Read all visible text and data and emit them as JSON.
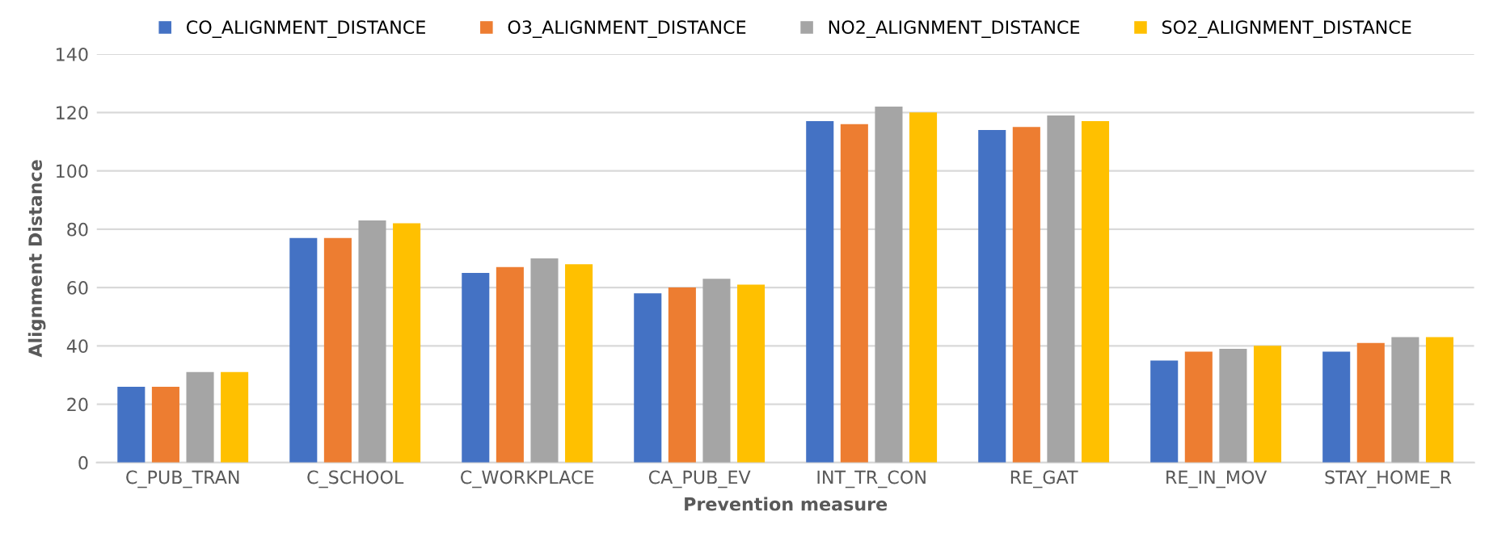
{
  "chart_data": {
    "type": "bar",
    "xlabel": "Prevention measure",
    "ylabel": "Alignment Distance",
    "categories": [
      "C_PUB_TRAN",
      "C_SCHOOL",
      "C_WORKPLACE",
      "CA_PUB_EV",
      "INT_TR_CON",
      "RE_GAT",
      "RE_IN_MOV",
      "STAY_HOME_R"
    ],
    "series": [
      {
        "name": "CO_ALIGNMENT_DISTANCE",
        "color": "#4472c4",
        "values": [
          26,
          77,
          65,
          58,
          117,
          114,
          35,
          38
        ]
      },
      {
        "name": "O3_ALIGNMENT_DISTANCE",
        "color": "#ed7d31",
        "values": [
          26,
          77,
          67,
          60,
          116,
          115,
          38,
          41
        ]
      },
      {
        "name": "NO2_ALIGNMENT_DISTANCE",
        "color": "#a5a5a5",
        "values": [
          31,
          83,
          70,
          63,
          122,
          119,
          39,
          43
        ]
      },
      {
        "name": "SO2_ALIGNMENT_DISTANCE",
        "color": "#ffc000",
        "values": [
          31,
          82,
          68,
          61,
          120,
          117,
          40,
          43
        ]
      }
    ],
    "ylim": [
      0,
      140
    ],
    "yticks": [
      0,
      20,
      40,
      60,
      80,
      100,
      120,
      140
    ],
    "grid": "y",
    "legend": "top"
  }
}
